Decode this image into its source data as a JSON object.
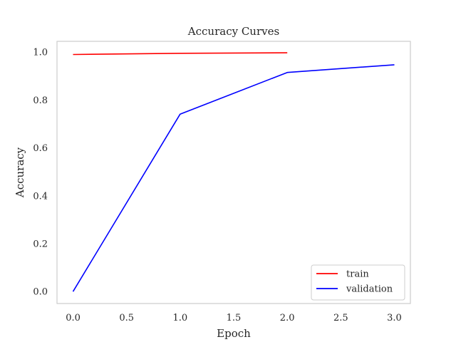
{
  "chart_data": {
    "type": "line",
    "title": "Accuracy Curves",
    "xlabel": "Epoch",
    "ylabel": "Accuracy",
    "xlim": [
      -0.15,
      3.15
    ],
    "ylim": [
      -0.05,
      1.045
    ],
    "xticks": [
      0.0,
      0.5,
      1.0,
      1.5,
      2.0,
      2.5,
      3.0
    ],
    "xtick_labels": [
      "0.0",
      "0.5",
      "1.0",
      "1.5",
      "2.0",
      "2.5",
      "3.0"
    ],
    "yticks": [
      0.0,
      0.2,
      0.4,
      0.6,
      0.8,
      1.0
    ],
    "ytick_labels": [
      "0.0",
      "0.2",
      "0.4",
      "0.6",
      "0.8",
      "1.0"
    ],
    "grid": false,
    "legend_position": "lower-right",
    "series": [
      {
        "name": "train",
        "color": "#ff0000",
        "x": [
          0,
          1,
          2
        ],
        "y": [
          0.99,
          0.995,
          0.997
        ]
      },
      {
        "name": "validation",
        "color": "#0000ff",
        "x": [
          0,
          1,
          2,
          3
        ],
        "y": [
          0.0,
          0.741,
          0.915,
          0.947
        ]
      }
    ]
  }
}
